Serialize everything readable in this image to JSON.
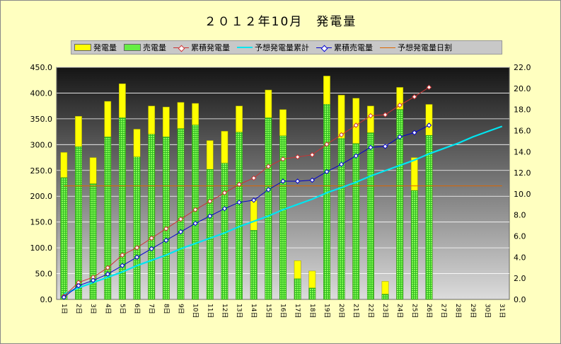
{
  "chart_data": {
    "type": "bar",
    "title": "２０１２年10月　発電量",
    "categories": [
      "1日",
      "2日",
      "3日",
      "4日",
      "5日",
      "6日",
      "7日",
      "8日",
      "9日",
      "10日",
      "11日",
      "12日",
      "13日",
      "14日",
      "15日",
      "16日",
      "17日",
      "18日",
      "19日",
      "20日",
      "21日",
      "22日",
      "23日",
      "24日",
      "25日",
      "26日",
      "27日",
      "28日",
      "29日",
      "30日",
      "31日"
    ],
    "series": [
      {
        "name": "発電量",
        "type": "bar-stacked-top",
        "color": "#ffff00",
        "values": [
          285,
          355,
          275,
          384,
          418,
          330,
          375,
          373,
          382,
          380,
          308,
          326,
          375,
          192,
          406,
          368,
          75,
          55,
          433,
          396,
          390,
          375,
          35,
          411,
          275,
          378,
          null,
          null,
          null,
          null,
          null
        ]
      },
      {
        "name": "売電量",
        "type": "bar",
        "color": "#66ee44",
        "values": [
          236,
          296,
          224,
          315,
          352,
          276,
          320,
          315,
          331,
          338,
          252,
          264,
          324,
          134,
          352,
          317,
          40,
          22,
          378,
          312,
          302,
          323,
          10,
          368,
          211,
          318,
          null,
          null,
          null,
          null,
          null
        ]
      },
      {
        "name": "累積発電量",
        "type": "line",
        "axis": "right",
        "color": "#cc3333",
        "values": [
          0.3,
          1.6,
          2.1,
          3.0,
          4.2,
          4.9,
          5.8,
          6.7,
          7.6,
          8.5,
          9.3,
          10.1,
          10.9,
          11.5,
          12.6,
          13.3,
          13.5,
          13.7,
          14.7,
          15.6,
          16.5,
          17.4,
          17.5,
          18.4,
          19.2,
          20.1,
          null,
          null,
          null,
          null,
          null
        ]
      },
      {
        "name": "予想発電量累計",
        "type": "line",
        "axis": "right",
        "color": "#00e5f0",
        "values": [
          0.5,
          1.1,
          1.6,
          2.1,
          2.6,
          3.2,
          3.7,
          4.2,
          4.8,
          5.3,
          5.8,
          6.3,
          6.9,
          7.4,
          7.9,
          8.5,
          9.0,
          9.5,
          10.1,
          10.6,
          11.1,
          11.7,
          12.2,
          12.7,
          13.2,
          13.8,
          14.3,
          14.8,
          15.4,
          15.9,
          16.4
        ]
      },
      {
        "name": "累積売電量",
        "type": "line",
        "axis": "right",
        "color": "#0000cc",
        "values": [
          0.2,
          1.3,
          1.8,
          2.4,
          3.2,
          4.0,
          4.8,
          5.6,
          6.4,
          7.2,
          7.9,
          8.6,
          9.2,
          9.4,
          10.4,
          11.2,
          11.2,
          11.3,
          12.1,
          12.8,
          13.6,
          14.4,
          14.5,
          15.4,
          15.8,
          16.5,
          null,
          null,
          null,
          null,
          null
        ]
      },
      {
        "name": "予想発電量日割",
        "type": "line",
        "axis": "left",
        "color": "#dd6600",
        "values": [
          220,
          220,
          220,
          220,
          220,
          220,
          220,
          220,
          220,
          220,
          220,
          220,
          220,
          220,
          220,
          220,
          220,
          220,
          220,
          220,
          220,
          220,
          220,
          220,
          220,
          220,
          220,
          220,
          220,
          220,
          220
        ]
      }
    ],
    "yleft": {
      "min": 0,
      "max": 450,
      "step": 50,
      "ticks": [
        "0.0",
        "50.0",
        "100.0",
        "150.0",
        "200.0",
        "250.0",
        "300.0",
        "350.0",
        "400.0",
        "450.0"
      ]
    },
    "yright": {
      "min": 0,
      "max": 22,
      "step": 2,
      "ticks": [
        "0.0",
        "2.0",
        "4.0",
        "6.0",
        "8.0",
        "10.0",
        "12.0",
        "14.0",
        "16.0",
        "18.0",
        "20.0",
        "22.0"
      ]
    },
    "grid": true,
    "legend_position": "top"
  }
}
